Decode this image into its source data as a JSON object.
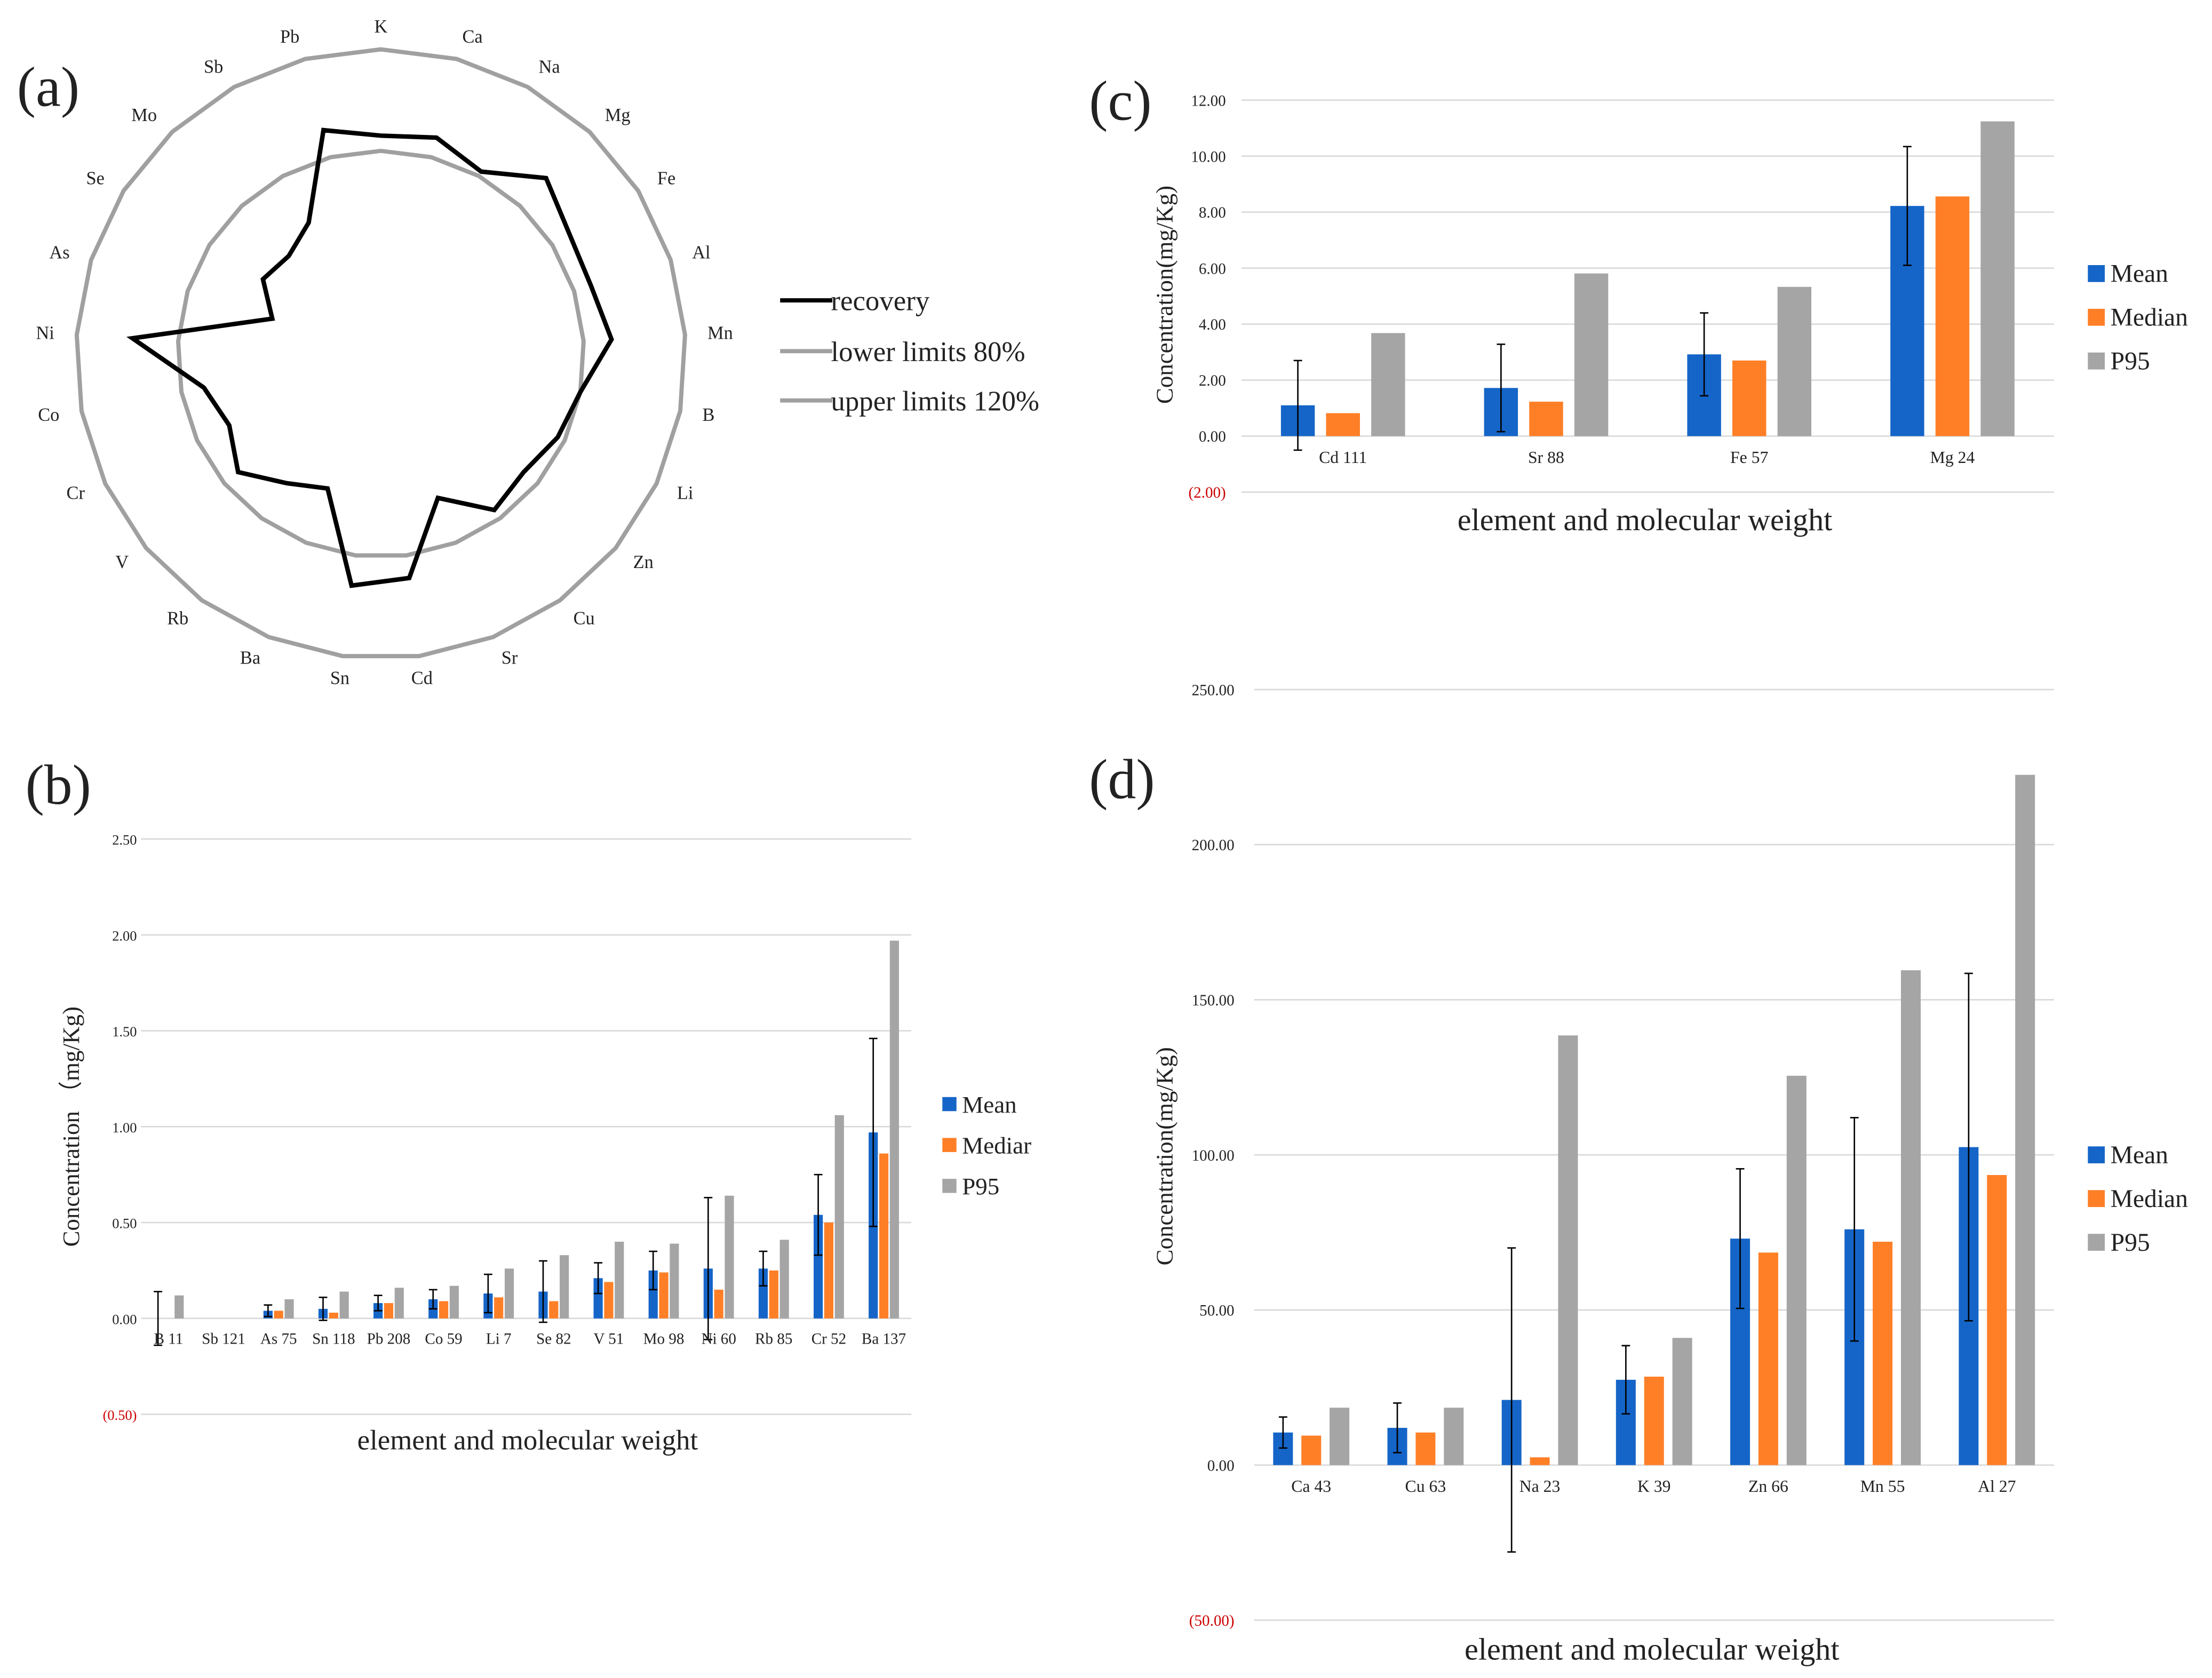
{
  "colors": {
    "mean": "#1565c8",
    "median": "#ff7f27",
    "p95": "#a5a5a5",
    "recovery": "#000000",
    "limit": "#a0a0a0",
    "grid": "#d9d9d9",
    "negative_tick": "#cc0000",
    "text": "#222222"
  },
  "chart_data": [
    {
      "panel": "(a)",
      "type": "radar",
      "categories": [
        "K",
        "Ca",
        "Na",
        "Mg",
        "Fe",
        "Al",
        "Mn",
        "B",
        "Li",
        "Zn",
        "Cu",
        "Sr",
        "Cd",
        "Sn",
        "Ba",
        "Rb",
        "V",
        "Cr",
        "Co",
        "Ni",
        "As",
        "Se",
        "Mo",
        "Sb",
        "Pb"
      ],
      "series": [
        {
          "name": "recovery",
          "values": [
            86,
            88,
            82,
            95,
            88,
            87,
            91,
            80,
            77,
            73,
            76,
            61,
            89,
            92,
            57,
            63,
            73,
            66,
            71,
            98,
            45,
            55,
            53,
            59,
            91
          ]
        },
        {
          "name": "lower limits 80%",
          "values": [
            80,
            80,
            80,
            80,
            80,
            80,
            80,
            80,
            80,
            80,
            80,
            80,
            80,
            80,
            80,
            80,
            80,
            80,
            80,
            80,
            80,
            80,
            80,
            80,
            80
          ]
        },
        {
          "name": "upper limits 120%",
          "values": [
            120,
            120,
            120,
            120,
            120,
            120,
            120,
            120,
            120,
            120,
            120,
            120,
            120,
            120,
            120,
            120,
            120,
            120,
            120,
            120,
            120,
            120,
            120,
            120,
            120
          ]
        }
      ],
      "legend": [
        "recovery",
        "lower limits 80%",
        "upper limits 120%"
      ],
      "legend_position": "right"
    },
    {
      "panel": "(b)",
      "type": "bar",
      "categories": [
        "B 11",
        "Sb 121",
        "As 75",
        "Sn 118",
        "Pb 208",
        "Co 59",
        "Li 7",
        "Se 82",
        "V 51",
        "Mo 98",
        "Ni 60",
        "Rb 85",
        "Cr 52",
        "Ba 137"
      ],
      "series": [
        {
          "name": "Mean",
          "values": [
            0.0,
            0.0,
            0.04,
            0.05,
            0.08,
            0.1,
            0.13,
            0.14,
            0.21,
            0.25,
            0.26,
            0.26,
            0.54,
            0.97
          ],
          "errors": [
            0.14,
            0.0,
            0.03,
            0.06,
            0.04,
            0.05,
            0.1,
            0.16,
            0.08,
            0.1,
            0.37,
            0.09,
            0.21,
            0.49
          ]
        },
        {
          "name": "Mediar",
          "values": [
            0.0,
            0.0,
            0.04,
            0.03,
            0.08,
            0.09,
            0.11,
            0.09,
            0.19,
            0.24,
            0.15,
            0.25,
            0.5,
            0.86
          ]
        },
        {
          "name": "P95",
          "values": [
            0.12,
            0.0,
            0.1,
            0.14,
            0.16,
            0.17,
            0.26,
            0.33,
            0.4,
            0.39,
            0.64,
            0.41,
            1.06,
            1.97
          ]
        }
      ],
      "y_ticks": [
        "(0.50)",
        "0.00",
        "0.50",
        "1.00",
        "1.50",
        "2.00",
        "2.50"
      ],
      "ylim": [
        -0.5,
        2.5
      ],
      "xlabel": "element  and molecular weight",
      "ylabel": "Concentration （mg/Kg)",
      "legend_position": "right"
    },
    {
      "panel": "(c)",
      "type": "bar",
      "categories": [
        "Cd 111",
        "Sr 88",
        "Fe 57",
        "Mg 24"
      ],
      "series": [
        {
          "name": "Mean",
          "values": [
            1.1,
            1.72,
            2.92,
            8.22
          ],
          "errors": [
            1.6,
            1.56,
            1.48,
            2.12
          ]
        },
        {
          "name": "Median",
          "values": [
            0.82,
            1.23,
            2.7,
            8.56
          ]
        },
        {
          "name": "P95",
          "values": [
            3.68,
            5.81,
            5.33,
            11.24
          ]
        }
      ],
      "y_ticks": [
        "(2.00)",
        "0.00",
        "2.00",
        "4.00",
        "6.00",
        "8.00",
        "10.00",
        "12.00"
      ],
      "ylim": [
        -2,
        12
      ],
      "xlabel": "element and molecular weight",
      "ylabel": "Concentration(mg/Kg)",
      "legend_position": "right"
    },
    {
      "panel": "(d)",
      "type": "bar",
      "categories": [
        "Ca 43",
        "Cu 63",
        "Na 23",
        "K 39",
        "Zn 66",
        "Mn 55",
        "Al 27"
      ],
      "series": [
        {
          "name": "Mean",
          "values": [
            10.5,
            12.0,
            21.0,
            27.5,
            73.0,
            76.0,
            102.5
          ],
          "errors": [
            5.0,
            8.0,
            49.0,
            11.0,
            22.5,
            36.0,
            56.0
          ]
        },
        {
          "name": "Median",
          "values": [
            9.5,
            10.5,
            2.5,
            28.5,
            68.5,
            72.0,
            93.5
          ]
        },
        {
          "name": "P95",
          "values": [
            18.5,
            18.5,
            138.5,
            41.0,
            125.5,
            159.5,
            222.5
          ]
        }
      ],
      "y_ticks": [
        "(50.00)",
        "0.00",
        "50.00",
        "100.00",
        "150.00",
        "200.00",
        "250.00"
      ],
      "ylim": [
        -50,
        250
      ],
      "xlabel": "element and molecular weight",
      "ylabel": "Concentration(mg/Kg)",
      "legend_position": "right"
    }
  ]
}
